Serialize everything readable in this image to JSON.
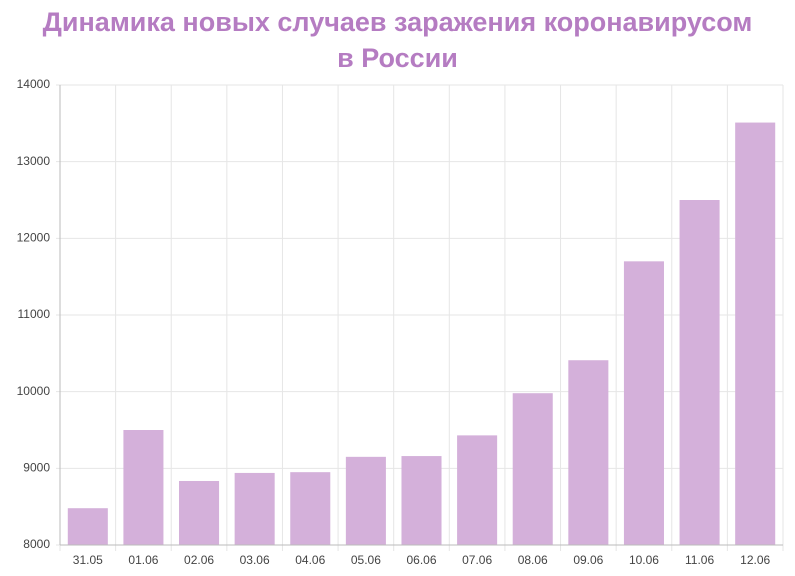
{
  "chart_data": {
    "type": "bar",
    "title": "Динамика новых случаев заражения коронавирусом в России",
    "categories": [
      "31.05",
      "01.06",
      "02.06",
      "03.06",
      "04.06",
      "05.06",
      "06.06",
      "07.06",
      "08.06",
      "09.06",
      "10.06",
      "11.06",
      "12.06"
    ],
    "values": [
      8480,
      9500,
      8835,
      8940,
      8950,
      9150,
      9160,
      9430,
      9980,
      10410,
      11700,
      12500,
      13510
    ],
    "color": "#d4b0da",
    "ylim": [
      8000,
      14000
    ],
    "yticks": [
      8000,
      9000,
      10000,
      11000,
      12000,
      13000,
      14000
    ],
    "grid": true
  }
}
